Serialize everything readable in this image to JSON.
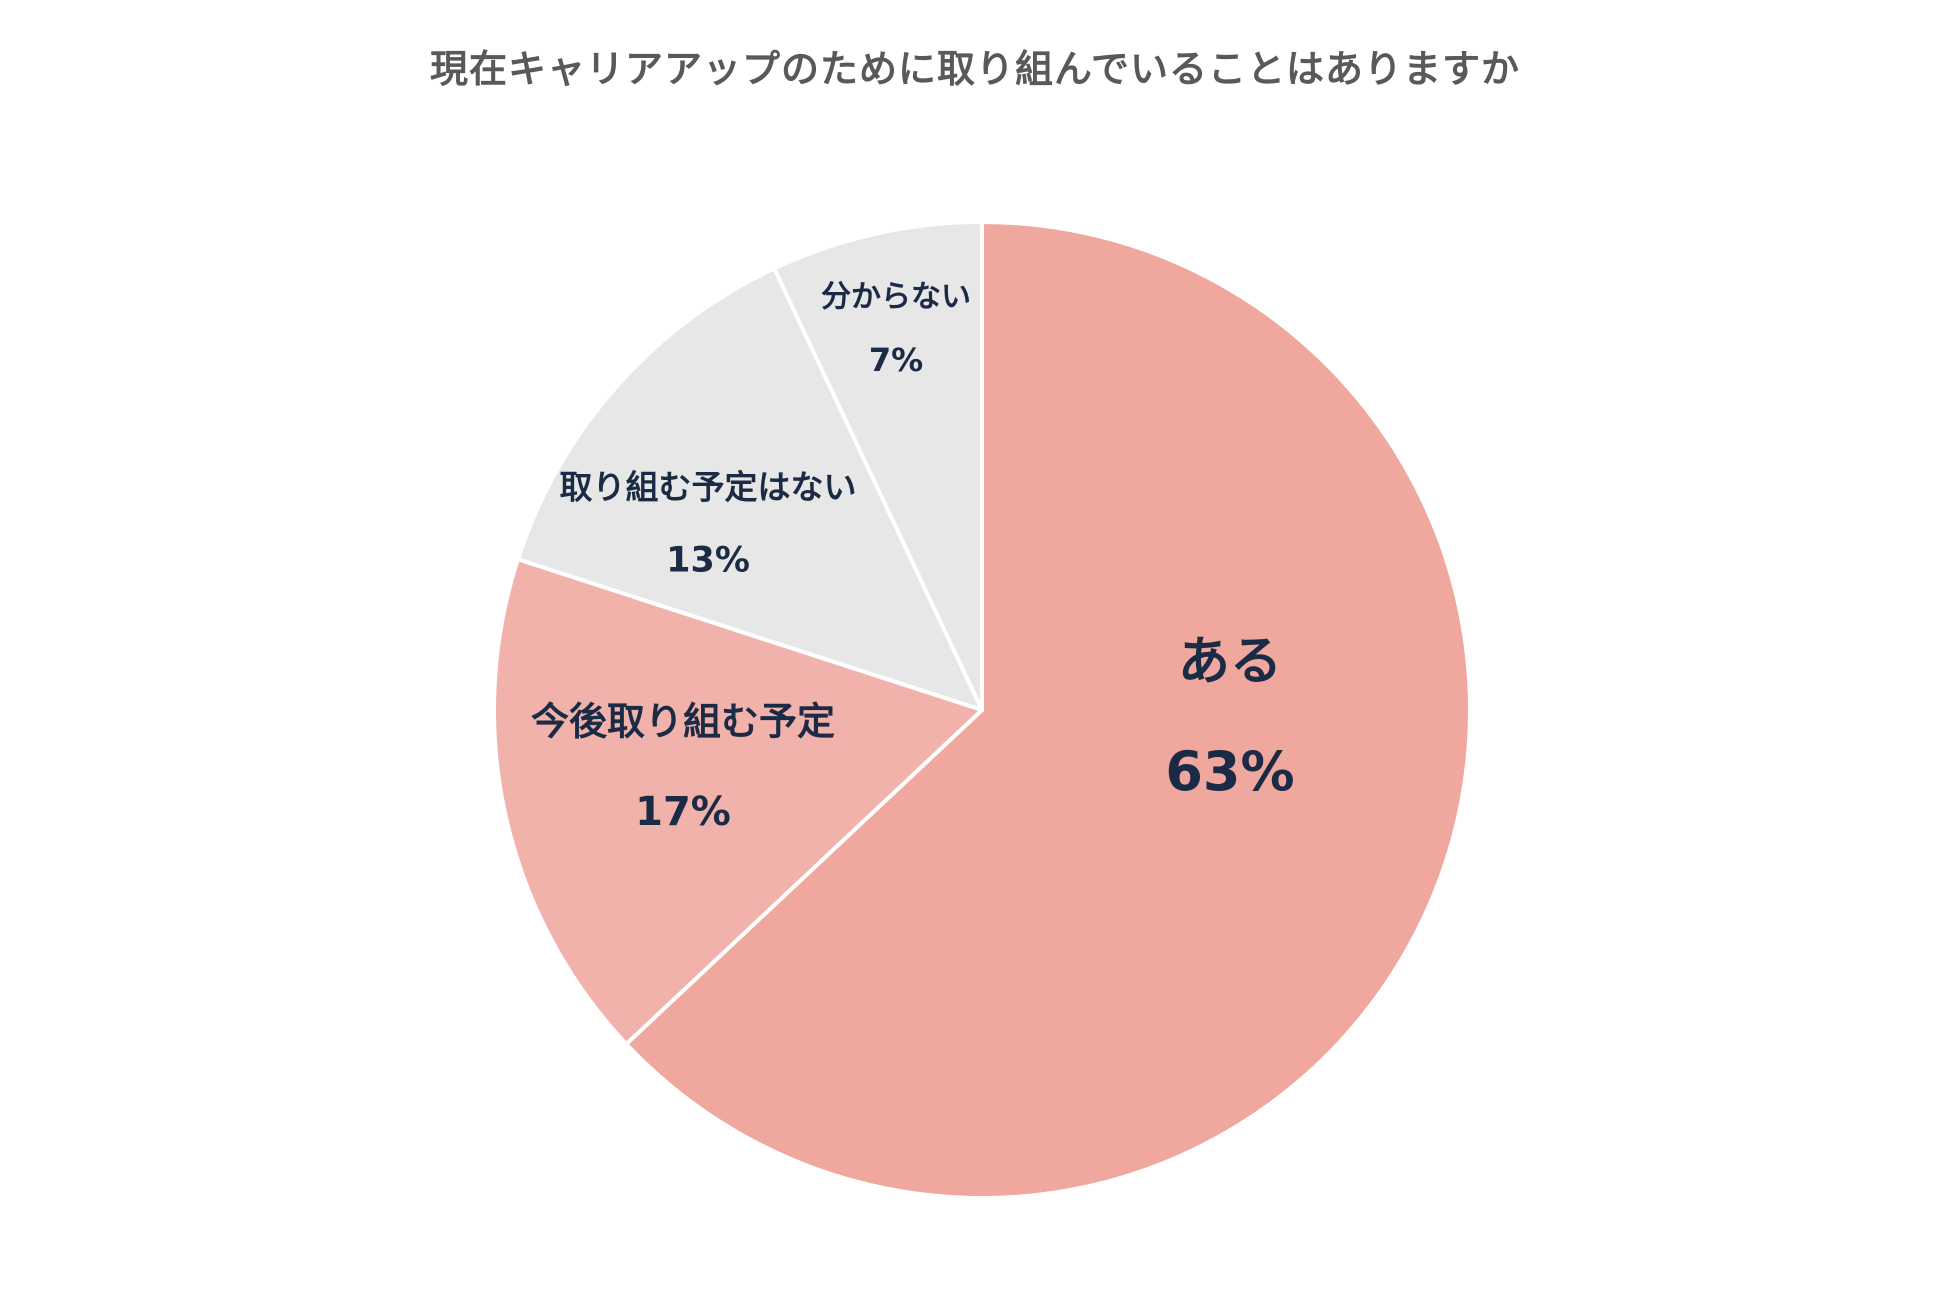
{
  "chart_data": {
    "type": "pie",
    "title": "現在キャリアアップのために取り組んでいることはありますか",
    "slices": [
      {
        "label": "ある",
        "value": 63,
        "value_label": "63%",
        "color": "#efa79e"
      },
      {
        "label": "今後取り組む予定",
        "value": 17,
        "value_label": "17%",
        "color": "#f0b2aa"
      },
      {
        "label": "取り組む予定はない",
        "value": 13,
        "value_label": "13%",
        "color": "#e7e7e7"
      },
      {
        "label": "分からない",
        "value": 7,
        "value_label": "7%",
        "color": "#e7e7e7"
      }
    ],
    "start": "12 o'clock",
    "direction": "clockwise",
    "label_color": "#1c2b45",
    "separator_color": "#ffffff"
  }
}
